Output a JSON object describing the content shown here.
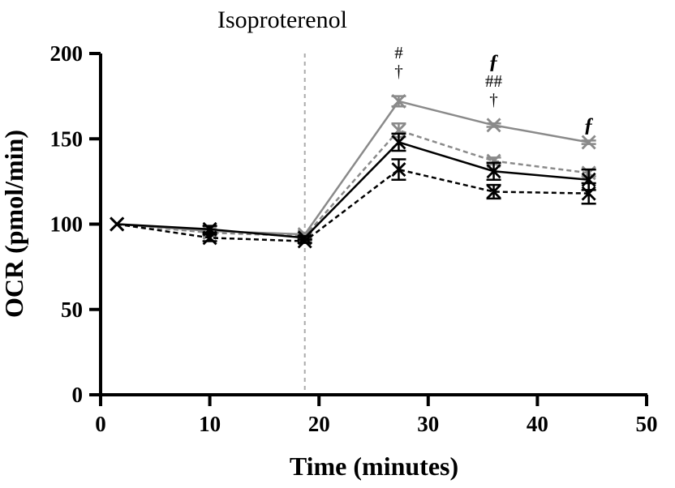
{
  "chart_data": {
    "type": "line",
    "title": "",
    "annotation_label": "Isoproterenol",
    "annotation_x": 18.7,
    "xlabel": "Time (minutes)",
    "ylabel": "OCR (pmol/min)",
    "xlim": [
      0,
      50
    ],
    "ylim": [
      0,
      200
    ],
    "xticks": [
      "0",
      "10",
      "20",
      "30",
      "40",
      "50"
    ],
    "yticks": [
      "0",
      "50",
      "100",
      "150",
      "200"
    ],
    "x": [
      1.5,
      10,
      18.7,
      27.3,
      36,
      44.7
    ],
    "series": [
      {
        "name": "series 1",
        "color": "#8a8a8a",
        "dash": "solid",
        "values": [
          100,
          96,
          94,
          172,
          158,
          148
        ],
        "errors": [
          0,
          1,
          1,
          3,
          1,
          1
        ]
      },
      {
        "name": "series 2",
        "color": "#8a8a8a",
        "dash": "dashed",
        "values": [
          100,
          95,
          93,
          155,
          137,
          130
        ],
        "errors": [
          0,
          1,
          1,
          4,
          2,
          2
        ]
      },
      {
        "name": "series 3",
        "color": "#000000",
        "dash": "solid",
        "values": [
          100,
          97,
          92,
          148,
          131,
          126
        ],
        "errors": [
          0,
          2,
          1,
          5,
          5,
          6
        ]
      },
      {
        "name": "series 4",
        "color": "#000000",
        "dash": "dashed",
        "values": [
          100,
          92,
          90,
          132,
          119,
          118
        ],
        "errors": [
          0,
          2,
          1,
          6,
          4,
          6
        ]
      }
    ],
    "significance_marks": [
      {
        "x": 27.3,
        "lines": [
          "#",
          "†"
        ]
      },
      {
        "x": 36,
        "lines": [
          "ƒ",
          "##",
          "†"
        ]
      },
      {
        "x": 44.7,
        "lines": [
          "ƒ"
        ]
      }
    ]
  }
}
